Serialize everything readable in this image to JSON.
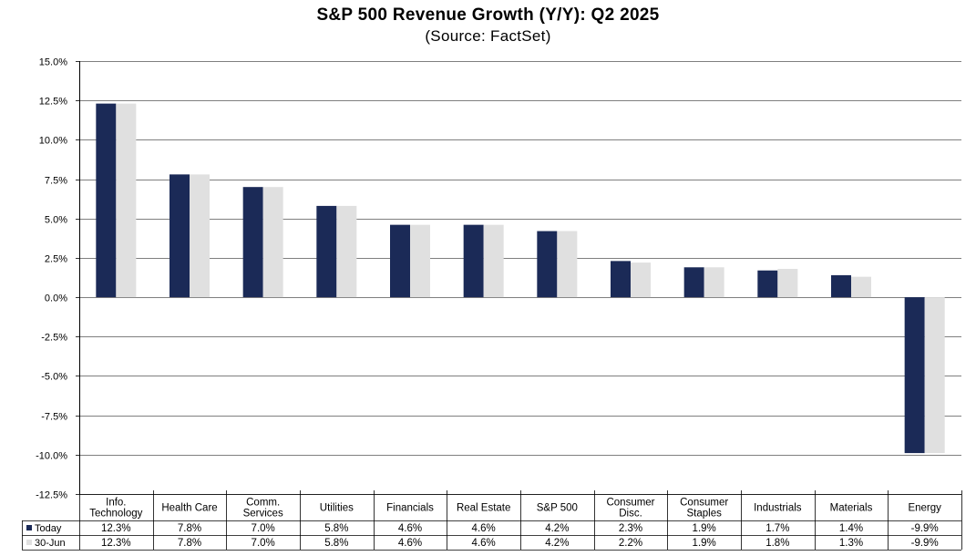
{
  "chart_data": {
    "type": "bar",
    "title": "S&P 500 Revenue Growth (Y/Y): Q2 2025",
    "subtitle": "(Source: FactSet)",
    "categories": [
      [
        "Info.",
        "Technology"
      ],
      [
        "Health Care"
      ],
      [
        "Comm.",
        "Services"
      ],
      [
        "Utilities"
      ],
      [
        "Financials"
      ],
      [
        "Real Estate"
      ],
      [
        "S&P 500"
      ],
      [
        "Consumer",
        "Disc."
      ],
      [
        "Consumer",
        "Staples"
      ],
      [
        "Industrials"
      ],
      [
        "Materials"
      ],
      [
        "Energy"
      ]
    ],
    "series": [
      {
        "name": "Today",
        "color": "#1b2a57",
        "values": [
          12.3,
          7.8,
          7.0,
          5.8,
          4.6,
          4.6,
          4.2,
          2.3,
          1.9,
          1.7,
          1.4,
          -9.9
        ],
        "labels": [
          "12.3%",
          "7.8%",
          "7.0%",
          "5.8%",
          "4.6%",
          "4.6%",
          "4.2%",
          "2.3%",
          "1.9%",
          "1.7%",
          "1.4%",
          "-9.9%"
        ]
      },
      {
        "name": "30-Jun",
        "color": "#e0e0e0",
        "values": [
          12.3,
          7.8,
          7.0,
          5.8,
          4.6,
          4.6,
          4.2,
          2.2,
          1.9,
          1.8,
          1.3,
          -9.9
        ],
        "labels": [
          "12.3%",
          "7.8%",
          "7.0%",
          "5.8%",
          "4.6%",
          "4.6%",
          "4.2%",
          "2.2%",
          "1.9%",
          "1.8%",
          "1.3%",
          "-9.9%"
        ]
      }
    ],
    "ylim": [
      -12.5,
      15.0
    ],
    "ytick_labels": [
      "15.0%",
      "12.5%",
      "10.0%",
      "7.5%",
      "5.0%",
      "2.5%",
      "0.0%",
      "-2.5%",
      "-5.0%",
      "-7.5%",
      "-10.0%",
      "-12.5%"
    ],
    "ytick_values": [
      15.0,
      12.5,
      10.0,
      7.5,
      5.0,
      2.5,
      0.0,
      -2.5,
      -5.0,
      -7.5,
      -10.0,
      -12.5
    ],
    "grid": true,
    "legend": "data-table-left",
    "gridline_color": "#000000"
  }
}
